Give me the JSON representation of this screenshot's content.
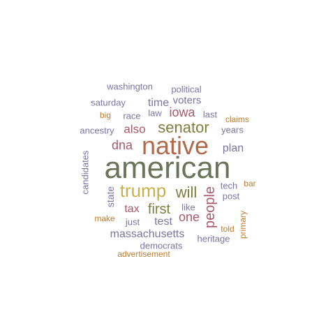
{
  "words": [
    {
      "text": "american",
      "color": "#6b7358"
    },
    {
      "text": "native",
      "color": "#b06a4a"
    },
    {
      "text": "trump",
      "color": "#c9b04e"
    },
    {
      "text": "senator",
      "color": "#7c7f3d"
    },
    {
      "text": "will",
      "color": "#7c7f3d"
    },
    {
      "text": "first",
      "color": "#7c7f3d"
    },
    {
      "text": "people",
      "color": "#a85a6a"
    },
    {
      "text": "one",
      "color": "#a85a6a"
    },
    {
      "text": "iowa",
      "color": "#a85a6a"
    },
    {
      "text": "also",
      "color": "#a85a6a"
    },
    {
      "text": "dna",
      "color": "#a85a6a"
    },
    {
      "text": "tax",
      "color": "#a85a6a"
    },
    {
      "text": "voters",
      "color": "#7d74a3"
    },
    {
      "text": "time",
      "color": "#7d74a3"
    },
    {
      "text": "plan",
      "color": "#7d74a3"
    },
    {
      "text": "test",
      "color": "#7d74a3"
    },
    {
      "text": "massachusetts",
      "color": "#7d74a3"
    },
    {
      "text": "state",
      "color": "#7d74a3"
    },
    {
      "text": "washington",
      "color": "#7d74a3"
    },
    {
      "text": "political",
      "color": "#7d74a3"
    },
    {
      "text": "saturday",
      "color": "#7d74a3"
    },
    {
      "text": "law",
      "color": "#7d74a3"
    },
    {
      "text": "race",
      "color": "#7d74a3"
    },
    {
      "text": "last",
      "color": "#7d74a3"
    },
    {
      "text": "ancestry",
      "color": "#7d74a3"
    },
    {
      "text": "years",
      "color": "#7d74a3"
    },
    {
      "text": "candidates",
      "color": "#7d74a3"
    },
    {
      "text": "tech",
      "color": "#7d74a3"
    },
    {
      "text": "post",
      "color": "#7d74a3"
    },
    {
      "text": "like",
      "color": "#7d74a3"
    },
    {
      "text": "just",
      "color": "#7d74a3"
    },
    {
      "text": "heritage",
      "color": "#7d74a3"
    },
    {
      "text": "democrats",
      "color": "#7d74a3"
    },
    {
      "text": "big",
      "color": "#c07c2e"
    },
    {
      "text": "claims",
      "color": "#c07c2e"
    },
    {
      "text": "bar",
      "color": "#c07c2e"
    },
    {
      "text": "make",
      "color": "#c07c2e"
    },
    {
      "text": "told",
      "color": "#c07c2e"
    },
    {
      "text": "primary",
      "color": "#c07c2e"
    },
    {
      "text": "advertisement",
      "color": "#c07c2e"
    }
  ]
}
